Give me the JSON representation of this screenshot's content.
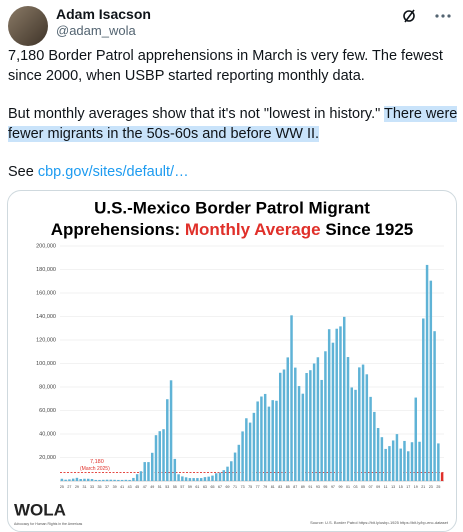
{
  "author": {
    "name": "Adam Isacson",
    "handle": "@adam_wola"
  },
  "tweet": {
    "paragraph1": "7,180 Border Patrol apprehensions in March is very few. The fewest since 2000, when USBP started reporting monthly data.",
    "paragraph2": "But monthly averages show that it's not \"lowest in history.\" ",
    "paragraph2_highlight": "There were fewer migrants in the 50s-60s and before WW II.",
    "see": "See ",
    "link": "cbp.gov/sites/default/…"
  },
  "chart_data": {
    "type": "bar",
    "title": [
      "U.S.-Mexico Border Patrol Migrant",
      "Apprehensions: ",
      "Monthly Average",
      " Since 1925"
    ],
    "title_highlight_color": "#e0302a",
    "categories": [
      "25",
      null,
      "27",
      null,
      "29",
      null,
      "31",
      null,
      "33",
      null,
      "35",
      null,
      "37",
      null,
      "39",
      null,
      "41",
      null,
      "43",
      null,
      "45",
      null,
      "47",
      null,
      "49",
      null,
      "51",
      null,
      "53",
      null,
      "55",
      null,
      "57",
      null,
      "59",
      null,
      "61",
      null,
      "63",
      null,
      "65",
      null,
      "67",
      null,
      "69",
      null,
      "71",
      null,
      "73",
      null,
      "75",
      null,
      "77",
      null,
      "79",
      null,
      "81",
      null,
      "83",
      null,
      "85",
      null,
      "87",
      null,
      "89",
      null,
      "91",
      null,
      "93",
      null,
      "95",
      null,
      "97",
      null,
      "99",
      null,
      "01",
      null,
      "03",
      null,
      "05",
      null,
      "07",
      null,
      "09",
      null,
      "11",
      null,
      "13",
      null,
      "15",
      null,
      "17",
      null,
      "19",
      null,
      "21",
      null,
      "23",
      null,
      "25",
      null
    ],
    "values": [
      1900,
      1100,
      1400,
      2000,
      2700,
      1700,
      1900,
      1900,
      1700,
      900,
      900,
      1000,
      1100,
      1100,
      1000,
      900,
      900,
      1000,
      900,
      2600,
      5800,
      8300,
      16100,
      16100,
      24000,
      39000,
      42400,
      44100,
      69600,
      85700,
      18800,
      5700,
      3900,
      3100,
      2500,
      2500,
      2500,
      2500,
      3300,
      3700,
      4600,
      6600,
      7200,
      9200,
      12200,
      16800,
      24200,
      30800,
      42200,
      53400,
      49700,
      58000,
      67700,
      71900,
      74100,
      63300,
      68800,
      68300,
      92100,
      94900,
      105200,
      141000,
      96500,
      80800,
      74300,
      91900,
      94300,
      100000,
      105300,
      86000,
      110400,
      129200,
      117700,
      129600,
      131600,
      139700,
      105500,
      79600,
      77600,
      96700,
      99100,
      90800,
      71600,
      58800,
      45100,
      37300,
      27300,
      29700,
      34500,
      39900,
      27600,
      34100,
      25300,
      33000,
      71000,
      33400,
      138300,
      183900,
      170500,
      127500,
      32000,
      7180
    ],
    "color": "#5fb3d6",
    "last_color": "#e0302a",
    "ylim": [
      0,
      200000
    ],
    "yticks": [
      {
        "value": 20000,
        "label": "20,000"
      },
      {
        "value": 40000,
        "label": "40,000"
      },
      {
        "value": 60000,
        "label": "60,000"
      },
      {
        "value": 80000,
        "label": "80,000"
      },
      {
        "value": 100000,
        "label": "100,000"
      },
      {
        "value": 120000,
        "label": "120,000"
      },
      {
        "value": 140000,
        "label": "140,000"
      },
      {
        "value": 160000,
        "label": "160,000"
      },
      {
        "value": 180000,
        "label": "180,000"
      },
      {
        "value": 200000,
        "label": "200,000"
      }
    ],
    "grid": true,
    "reference_line": {
      "value": 7180,
      "label": "7,180",
      "note": "(March 2025)",
      "color": "#e0302a"
    },
    "source": "Source: U.S. Border Patrol https://bit.ly/usbp-1925 https://bit.ly/bp-enc-dataset",
    "logo": "WOLA",
    "logo_tagline": "Advocacy for Human Rights in the Americas"
  }
}
